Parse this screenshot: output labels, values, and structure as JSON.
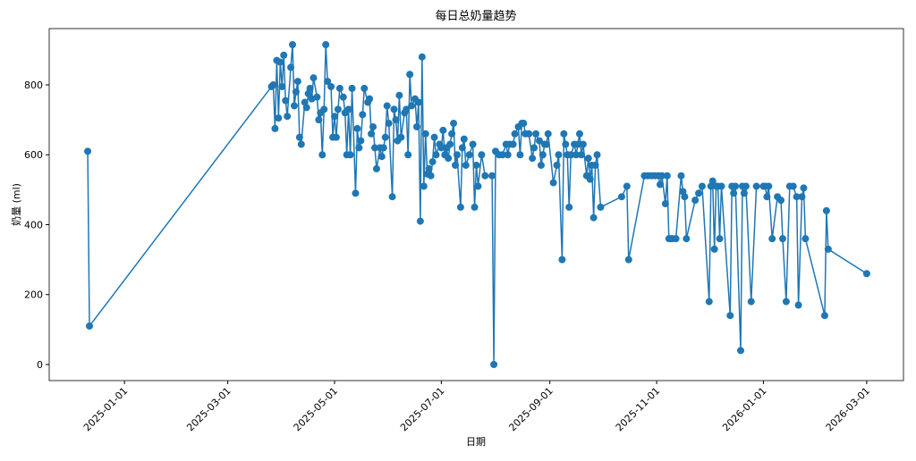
{
  "chart_data": {
    "type": "line",
    "title": "每日总奶量趋势",
    "xlabel": "日期",
    "ylabel": "奶量 (ml)",
    "xlim": [
      "2024-11-19",
      "2026-03-22"
    ],
    "ylim": [
      -46,
      961
    ],
    "xticks": [
      "2025-01-01",
      "2025-03-01",
      "2025-05-01",
      "2025-07-01",
      "2025-09-01",
      "2025-11-01",
      "2026-01-01",
      "2026-03-01"
    ],
    "yticks": [
      0,
      200,
      400,
      600,
      800
    ],
    "series": [
      {
        "color": "#1f77b4",
        "x": [
          "2024-12-11",
          "2024-12-12",
          "2025-03-26",
          "2025-03-27",
          "2025-03-28",
          "2025-03-29",
          "2025-03-30",
          "2025-03-31",
          "2025-04-01",
          "2025-04-02",
          "2025-04-03",
          "2025-04-04",
          "2025-04-06",
          "2025-04-07",
          "2025-04-08",
          "2025-04-09",
          "2025-04-10",
          "2025-04-11",
          "2025-04-12",
          "2025-04-14",
          "2025-04-15",
          "2025-04-16",
          "2025-04-17",
          "2025-04-18",
          "2025-04-19",
          "2025-04-21",
          "2025-04-22",
          "2025-04-23",
          "2025-04-24",
          "2025-04-25",
          "2025-04-26",
          "2025-04-27",
          "2025-04-29",
          "2025-04-30",
          "2025-05-01",
          "2025-05-02",
          "2025-05-03",
          "2025-05-04",
          "2025-05-06",
          "2025-05-07",
          "2025-05-08",
          "2025-05-09",
          "2025-05-10",
          "2025-05-11",
          "2025-05-13",
          "2025-05-14",
          "2025-05-15",
          "2025-05-16",
          "2025-05-17",
          "2025-05-18",
          "2025-05-20",
          "2025-05-21",
          "2025-05-22",
          "2025-05-23",
          "2025-05-24",
          "2025-05-25",
          "2025-05-27",
          "2025-05-28",
          "2025-05-29",
          "2025-05-30",
          "2025-05-31",
          "2025-06-01",
          "2025-06-03",
          "2025-06-04",
          "2025-06-05",
          "2025-06-06",
          "2025-06-07",
          "2025-06-08",
          "2025-06-10",
          "2025-06-11",
          "2025-06-12",
          "2025-06-13",
          "2025-06-14",
          "2025-06-16",
          "2025-06-17",
          "2025-06-18",
          "2025-06-19",
          "2025-06-20",
          "2025-06-21",
          "2025-06-22",
          "2025-06-23",
          "2025-06-24",
          "2025-06-25",
          "2025-06-26",
          "2025-06-27",
          "2025-06-28",
          "2025-06-30",
          "2025-07-01",
          "2025-07-02",
          "2025-07-03",
          "2025-07-04",
          "2025-07-05",
          "2025-07-06",
          "2025-07-07",
          "2025-07-08",
          "2025-07-09",
          "2025-07-10",
          "2025-07-12",
          "2025-07-13",
          "2025-07-14",
          "2025-07-15",
          "2025-07-17",
          "2025-07-19",
          "2025-07-20",
          "2025-07-21",
          "2025-07-22",
          "2025-07-24",
          "2025-07-26",
          "2025-07-30",
          "2025-07-31",
          "2025-08-01",
          "2025-08-03",
          "2025-08-05",
          "2025-08-07",
          "2025-08-08",
          "2025-08-09",
          "2025-08-11",
          "2025-08-12",
          "2025-08-14",
          "2025-08-15",
          "2025-08-16",
          "2025-08-17",
          "2025-08-18",
          "2025-08-20",
          "2025-08-22",
          "2025-08-23",
          "2025-08-24",
          "2025-08-26",
          "2025-08-27",
          "2025-08-28",
          "2025-08-29",
          "2025-08-30",
          "2025-08-31",
          "2025-09-03",
          "2025-09-05",
          "2025-09-06",
          "2025-09-08",
          "2025-09-09",
          "2025-09-10",
          "2025-09-11",
          "2025-09-12",
          "2025-09-13",
          "2025-09-15",
          "2025-09-16",
          "2025-09-17",
          "2025-09-18",
          "2025-09-19",
          "2025-09-20",
          "2025-09-22",
          "2025-09-23",
          "2025-09-24",
          "2025-09-25",
          "2025-09-26",
          "2025-09-27",
          "2025-09-28",
          "2025-09-30",
          "2025-10-12",
          "2025-10-15",
          "2025-10-16",
          "2025-10-25",
          "2025-10-27",
          "2025-10-29",
          "2025-10-31",
          "2025-11-02",
          "2025-11-03",
          "2025-11-04",
          "2025-11-06",
          "2025-11-07",
          "2025-11-08",
          "2025-11-09",
          "2025-11-10",
          "2025-11-12",
          "2025-11-15",
          "2025-11-16",
          "2025-11-17",
          "2025-11-18",
          "2025-11-23",
          "2025-11-25",
          "2025-11-27",
          "2025-12-01",
          "2025-12-02",
          "2025-12-03",
          "2025-12-04",
          "2025-12-05",
          "2025-12-06",
          "2025-12-07",
          "2025-12-08",
          "2025-12-13",
          "2025-12-14",
          "2025-12-15",
          "2025-12-16",
          "2025-12-19",
          "2025-12-20",
          "2025-12-21",
          "2025-12-22",
          "2025-12-25",
          "2025-12-28",
          "2026-01-01",
          "2026-01-02",
          "2026-01-03",
          "2026-01-04",
          "2026-01-06",
          "2026-01-09",
          "2026-01-11",
          "2026-01-12",
          "2026-01-14",
          "2026-01-16",
          "2026-01-18",
          "2026-01-20",
          "2026-01-21",
          "2026-01-23",
          "2026-01-24",
          "2026-01-25",
          "2026-02-05",
          "2026-02-06",
          "2026-02-07",
          "2026-03-01"
        ],
        "values": [
          610,
          110,
          795,
          800,
          675,
          870,
          705,
          865,
          795,
          885,
          755,
          710,
          850,
          915,
          740,
          780,
          810,
          650,
          630,
          750,
          735,
          775,
          790,
          760,
          820,
          765,
          700,
          720,
          600,
          730,
          915,
          810,
          795,
          650,
          710,
          650,
          730,
          790,
          765,
          720,
          600,
          730,
          600,
          790,
          490,
          675,
          620,
          640,
          715,
          790,
          750,
          760,
          660,
          680,
          620,
          560,
          620,
          595,
          620,
          650,
          740,
          690,
          480,
          730,
          700,
          640,
          770,
          650,
          720,
          730,
          600,
          830,
          740,
          760,
          680,
          750,
          410,
          880,
          510,
          660,
          545,
          560,
          540,
          580,
          650,
          600,
          630,
          620,
          670,
          600,
          620,
          590,
          630,
          660,
          690,
          570,
          600,
          450,
          620,
          645,
          570,
          600,
          630,
          450,
          570,
          510,
          600,
          540,
          540,
          0,
          610,
          600,
          600,
          630,
          600,
          630,
          630,
          660,
          680,
          600,
          690,
          690,
          660,
          660,
          590,
          620,
          660,
          640,
          570,
          600,
          630,
          630,
          660,
          520,
          570,
          600,
          300,
          660,
          630,
          600,
          450,
          600,
          630,
          600,
          630,
          660,
          600,
          630,
          540,
          590,
          530,
          570,
          420,
          570,
          600,
          450,
          480,
          510,
          300,
          540,
          540,
          540,
          540,
          540,
          515,
          540,
          460,
          540,
          360,
          360,
          360,
          360,
          540,
          495,
          480,
          360,
          470,
          490,
          510,
          180,
          510,
          525,
          330,
          510,
          510,
          360,
          510,
          140,
          510,
          490,
          510,
          40,
          510,
          490,
          510,
          180,
          510,
          510,
          510,
          480,
          510,
          360,
          480,
          470,
          360,
          180,
          510,
          510,
          480,
          170,
          480,
          505,
          360,
          140,
          440,
          330,
          260
        ]
      }
    ]
  }
}
